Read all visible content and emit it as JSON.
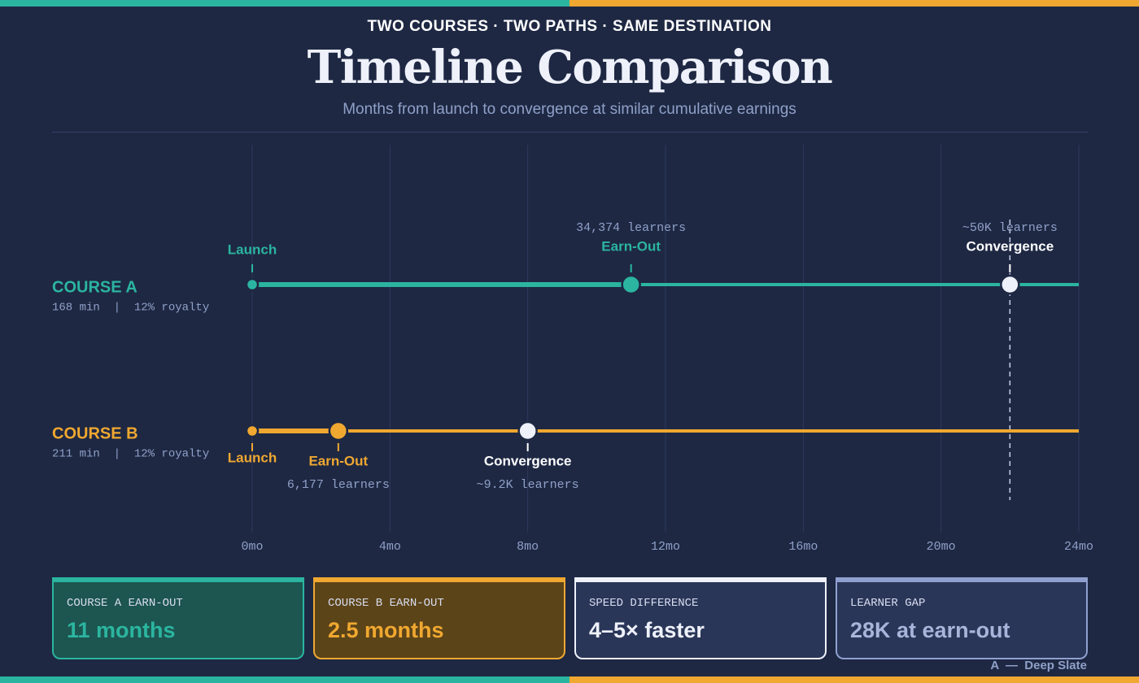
{
  "header": {
    "kicker": "TWO COURSES · TWO PATHS · SAME DESTINATION",
    "title": "Timeline Comparison",
    "subtitle": "Months from launch to convergence at similar cumulative earnings"
  },
  "chart_data": {
    "type": "timeline",
    "xlim": [
      0,
      24
    ],
    "xticks": [
      {
        "value": 0,
        "label": "0mo"
      },
      {
        "value": 4,
        "label": "4mo"
      },
      {
        "value": 8,
        "label": "8mo"
      },
      {
        "value": 12,
        "label": "12mo"
      },
      {
        "value": 16,
        "label": "16mo"
      },
      {
        "value": 20,
        "label": "20mo"
      },
      {
        "value": 24,
        "label": "24mo"
      }
    ],
    "grid": true,
    "series": [
      {
        "name": "COURSE A",
        "meta": "168 min  |  12% royalty",
        "color": "#2bb5a0",
        "events": [
          {
            "label": "Launch",
            "x": 0
          },
          {
            "label": "Earn-Out",
            "x": 11,
            "note": "34,374 learners"
          },
          {
            "label": "Convergence",
            "x": 22,
            "note": "~50K learners"
          }
        ]
      },
      {
        "name": "COURSE B",
        "meta": "211 min  |  12% royalty",
        "color": "#f0a830",
        "events": [
          {
            "label": "Launch",
            "x": 0
          },
          {
            "label": "Earn-Out",
            "x": 2.5,
            "note": "6,177 learners"
          },
          {
            "label": "Convergence",
            "x": 8,
            "note": "~9.2K learners"
          }
        ]
      }
    ]
  },
  "cards": [
    {
      "label": "COURSE A EARN-OUT",
      "value": "11 months"
    },
    {
      "label": "COURSE B EARN-OUT",
      "value": "2.5 months"
    },
    {
      "label": "SPEED DIFFERENCE",
      "value": "4–5× faster"
    },
    {
      "label": "LEARNER GAP",
      "value": "28K at earn-out"
    }
  ],
  "footer": "A  —  Deep Slate"
}
